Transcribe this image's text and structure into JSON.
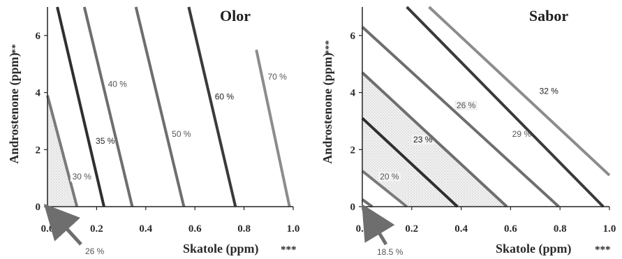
{
  "chart_data": [
    {
      "type": "contour",
      "title": "Olor",
      "xlabel": "Skatole (ppm)",
      "xlabel_suffix": "***",
      "ylabel": "Androstenone (ppm)",
      "ylabel_suffix": "**",
      "xlim": [
        0,
        1
      ],
      "ylim": [
        0,
        7
      ],
      "x_ticks": [
        "0.0",
        "0.2",
        "0.4",
        "0.6",
        "0.8",
        "1.0"
      ],
      "y_ticks": [
        "0",
        "2",
        "4",
        "6"
      ],
      "shaded_region": "26 % - 30 %",
      "contours": [
        {
          "label": "30 %",
          "x": [
            0.0,
            0.12
          ],
          "y": [
            3.9,
            0.0
          ],
          "color": "#7a7a7a",
          "label_at": [
            0.14,
            1.0
          ]
        },
        {
          "label": "35 %",
          "x": [
            0.04,
            0.23
          ],
          "y": [
            7.0,
            0.0
          ],
          "color": "#2f2f2f",
          "label_at": [
            0.235,
            2.25
          ]
        },
        {
          "label": "40 %",
          "x": [
            0.15,
            0.345
          ],
          "y": [
            7.0,
            0.0
          ],
          "color": "#6e6e6e",
          "label_at": [
            0.285,
            4.25
          ]
        },
        {
          "label": "50 %",
          "x": [
            0.36,
            0.555
          ],
          "y": [
            7.0,
            0.0
          ],
          "color": "#6e6e6e",
          "label_at": [
            0.545,
            2.5
          ]
        },
        {
          "label": "60 %",
          "x": [
            0.575,
            0.765
          ],
          "y": [
            7.0,
            0.0
          ],
          "color": "#3a3a3a",
          "label_at": [
            0.72,
            3.8
          ]
        },
        {
          "label": "70 %",
          "x": [
            0.85,
            0.985
          ],
          "y": [
            5.5,
            0.0
          ],
          "color": "#8c8c8c",
          "label_at": [
            0.935,
            4.5
          ]
        }
      ],
      "annotation": {
        "text": "26 %"
      }
    },
    {
      "type": "contour",
      "title": "Sabor",
      "xlabel": "Skatole (ppm)",
      "xlabel_suffix": "***",
      "ylabel": "Androstenone (ppm)",
      "ylabel_suffix": "***",
      "xlim": [
        0,
        1
      ],
      "ylim": [
        0,
        7
      ],
      "x_ticks": [
        "0.0",
        "0.2",
        "0.4",
        "0.6",
        "0.8",
        "1.0"
      ],
      "y_ticks": [
        "0",
        "2",
        "4",
        "6"
      ],
      "shaded_region": "20 % - 26 %",
      "contours": [
        {
          "label": "",
          "x": [
            0.0,
            0.04
          ],
          "y": [
            0.25,
            0.0
          ],
          "color": "#6e6e6e"
        },
        {
          "label": "20 %",
          "x": [
            0.0,
            0.18
          ],
          "y": [
            1.25,
            0.0
          ],
          "color": "#7a7a7a",
          "label_at": [
            0.11,
            1.0
          ]
        },
        {
          "label": "23 %",
          "x": [
            0.0,
            0.385
          ],
          "y": [
            3.1,
            0.0
          ],
          "color": "#2f2f2f",
          "label_at": [
            0.245,
            2.3
          ]
        },
        {
          "label": "26 %",
          "x": [
            0.0,
            0.585
          ],
          "y": [
            4.7,
            0.0
          ],
          "color": "#6e6e6e",
          "label_at": [
            0.42,
            3.5
          ]
        },
        {
          "label": "29 %",
          "x": [
            0.0,
            0.795
          ],
          "y": [
            6.3,
            0.0
          ],
          "color": "#6e6e6e",
          "label_at": [
            0.645,
            2.5
          ]
        },
        {
          "label": "",
          "x": [
            0.18,
            0.975
          ],
          "y": [
            7.0,
            0.0
          ],
          "color": "#3a3a3a"
        },
        {
          "label": "32 %",
          "x": [
            0.0,
            0.0
          ],
          "y": [
            0.0,
            0.0
          ],
          "color": "#3a3a3a",
          "label_at": [
            0.755,
            4.0
          ],
          "label_only": true
        },
        {
          "label": "",
          "x": [
            0.27,
            1.0
          ],
          "y": [
            7.0,
            1.1
          ],
          "color": "#8c8c8c"
        }
      ],
      "annotation": {
        "text": "18.5 %"
      }
    }
  ]
}
